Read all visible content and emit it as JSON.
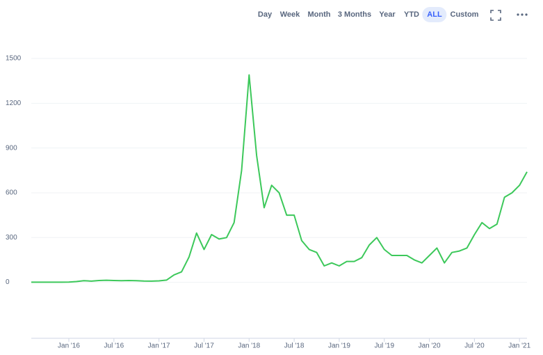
{
  "toolbar": {
    "items": [
      "Day",
      "Week",
      "Month",
      "3 Months",
      "Year",
      "YTD",
      "ALL",
      "Custom"
    ],
    "active": "ALL"
  },
  "chart_data": {
    "type": "line",
    "x": [
      "2015-08",
      "2015-09",
      "2015-10",
      "2015-11",
      "2015-12",
      "2016-01",
      "2016-02",
      "2016-03",
      "2016-04",
      "2016-05",
      "2016-06",
      "2016-07",
      "2016-08",
      "2016-09",
      "2016-10",
      "2016-11",
      "2016-12",
      "2017-01",
      "2017-02",
      "2017-03",
      "2017-04",
      "2017-05",
      "2017-06",
      "2017-07",
      "2017-08",
      "2017-09",
      "2017-10",
      "2017-11",
      "2017-12",
      "2018-01",
      "2018-02",
      "2018-03",
      "2018-04",
      "2018-05",
      "2018-06",
      "2018-07",
      "2018-08",
      "2018-09",
      "2018-10",
      "2018-11",
      "2018-12",
      "2019-01",
      "2019-02",
      "2019-03",
      "2019-04",
      "2019-05",
      "2019-06",
      "2019-07",
      "2019-08",
      "2019-09",
      "2019-10",
      "2019-11",
      "2019-12",
      "2020-01",
      "2020-02",
      "2020-03",
      "2020-04",
      "2020-05",
      "2020-06",
      "2020-07",
      "2020-08",
      "2020-09",
      "2020-10",
      "2020-11",
      "2020-12",
      "2021-01",
      "2021-02"
    ],
    "series": [
      {
        "color": "#3cc85a",
        "values": [
          1,
          1,
          1,
          1,
          1,
          2,
          5,
          11,
          8,
          12,
          14,
          12,
          11,
          12,
          11,
          9,
          8,
          10,
          15,
          50,
          70,
          170,
          330,
          220,
          320,
          290,
          300,
          400,
          750,
          1390,
          850,
          500,
          650,
          600,
          450,
          450,
          280,
          220,
          200,
          110,
          130,
          110,
          140,
          140,
          165,
          250,
          300,
          220,
          180,
          180,
          180,
          150,
          130,
          180,
          230,
          130,
          200,
          210,
          230,
          320,
          400,
          360,
          390,
          570,
          600,
          650,
          740
        ]
      }
    ],
    "xlim": [
      "2015-08",
      "2021-02"
    ],
    "ylim": [
      -375,
      1500
    ],
    "yticks": [
      0,
      300,
      600,
      900,
      1200,
      1500
    ],
    "xticks": [
      {
        "value": "2016-01",
        "label": "Jan '16"
      },
      {
        "value": "2016-07",
        "label": "Jul '16"
      },
      {
        "value": "2017-01",
        "label": "Jan '17"
      },
      {
        "value": "2017-07",
        "label": "Jul '17"
      },
      {
        "value": "2018-01",
        "label": "Jan '18"
      },
      {
        "value": "2018-07",
        "label": "Jul '18"
      },
      {
        "value": "2019-01",
        "label": "Jan '19"
      },
      {
        "value": "2019-07",
        "label": "Jul '19"
      },
      {
        "value": "2020-01",
        "label": "Jan '20"
      },
      {
        "value": "2020-07",
        "label": "Jul '20"
      },
      {
        "value": "2021-01",
        "label": "Jan '21"
      }
    ],
    "grid": true
  }
}
